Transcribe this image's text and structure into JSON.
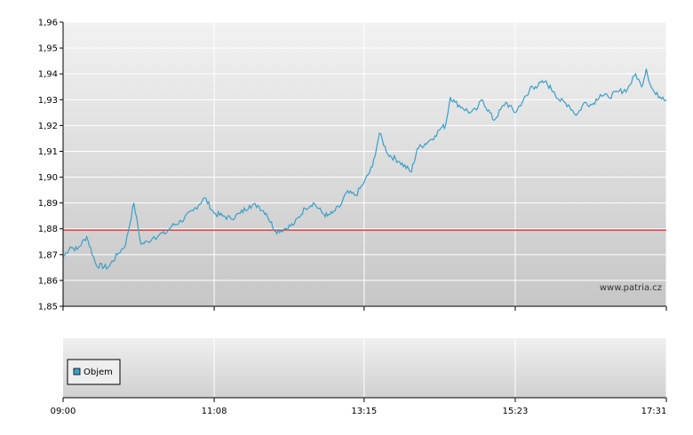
{
  "chart_data": [
    {
      "type": "line",
      "ylim": [
        1.85,
        1.96
      ],
      "y_ticks": [
        "1,96",
        "1,95",
        "1,94",
        "1,93",
        "1,92",
        "1,91",
        "1,90",
        "1,89",
        "1,88",
        "1,87",
        "1,86",
        "1,85"
      ],
      "y_tick_values": [
        1.96,
        1.95,
        1.94,
        1.93,
        1.92,
        1.91,
        1.9,
        1.89,
        1.88,
        1.87,
        1.86,
        1.85
      ],
      "x_ticks": [
        "09:00",
        "11:08",
        "13:15",
        "15:23",
        "17:31"
      ],
      "reference_line": {
        "value": 1.8795,
        "color": "#cc0000"
      },
      "watermark": "www.patria.cz",
      "grid": true,
      "series": [
        {
          "color": "#3a9fc8",
          "x": [
            "09:00",
            "09:06",
            "09:12",
            "09:20",
            "09:28",
            "09:38",
            "09:46",
            "09:53",
            "10:00",
            "10:06",
            "10:12",
            "10:17",
            "10:20",
            "10:22",
            "10:26",
            "10:32",
            "10:40",
            "10:50",
            "11:00",
            "11:08",
            "11:15",
            "11:22",
            "11:30",
            "11:38",
            "11:45",
            "11:52",
            "12:00",
            "12:08",
            "12:16",
            "12:25",
            "12:32",
            "12:40",
            "12:44",
            "12:48",
            "12:55",
            "13:00",
            "13:08",
            "13:15",
            "13:22",
            "13:28",
            "13:35",
            "13:45",
            "13:55",
            "14:00",
            "14:10",
            "14:15",
            "14:20",
            "14:24",
            "14:28",
            "14:32",
            "14:38",
            "14:45",
            "14:50",
            "14:55",
            "15:05",
            "15:15",
            "15:23",
            "15:30",
            "15:34",
            "15:36",
            "15:40",
            "15:48",
            "15:56",
            "16:00",
            "16:08",
            "16:15",
            "16:22",
            "16:28",
            "16:35",
            "16:42",
            "16:50",
            "16:58",
            "17:05",
            "17:10",
            "17:14",
            "17:18",
            "17:22",
            "17:28",
            "17:31"
          ],
          "values": [
            1.869,
            1.873,
            1.872,
            1.877,
            1.866,
            1.865,
            1.87,
            1.874,
            1.89,
            1.874,
            1.875,
            1.877,
            1.877,
            1.878,
            1.878,
            1.881,
            1.883,
            1.887,
            1.892,
            1.886,
            1.885,
            1.884,
            1.886,
            1.889,
            1.889,
            1.886,
            1.879,
            1.88,
            1.882,
            1.888,
            1.89,
            1.886,
            1.885,
            1.886,
            1.889,
            1.894,
            1.893,
            1.898,
            1.904,
            1.917,
            1.909,
            1.906,
            1.902,
            1.911,
            1.914,
            1.916,
            1.919,
            1.92,
            1.931,
            1.929,
            1.927,
            1.925,
            1.926,
            1.93,
            1.922,
            1.929,
            1.925,
            1.93,
            1.932,
            1.935,
            1.935,
            1.937,
            1.933,
            1.93,
            1.928,
            1.924,
            1.929,
            1.928,
            1.932,
            1.931,
            1.933,
            1.934,
            1.94,
            1.935,
            1.942,
            1.935,
            1.932,
            1.931,
            1.93
          ]
        }
      ]
    },
    {
      "type": "bar",
      "legend": [
        "Objem"
      ],
      "legend_color": "#3a9fc8",
      "x_ticks": [
        "09:00",
        "11:08",
        "13:15",
        "15:23",
        "17:31"
      ],
      "series": [
        {
          "name": "Objem",
          "values": []
        }
      ]
    }
  ]
}
